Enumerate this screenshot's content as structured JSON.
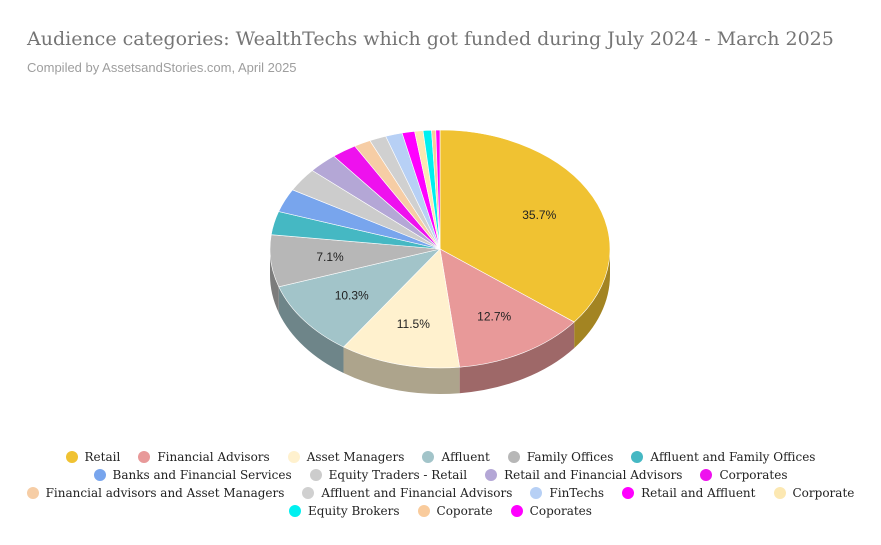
{
  "header": {
    "title": "Audience categories: WealthTechs which got funded during July 2024 - March 2025",
    "subtitle": "Compiled by AssetsandStories.com, April 2025"
  },
  "chart_data": {
    "type": "pie",
    "style": "3d",
    "title": "Audience categories: WealthTechs which got funded during July 2024 - March 2025",
    "subtitle": "Compiled by AssetsandStories.com, April 2025",
    "legend_position": "bottom",
    "slices": [
      {
        "label": "Retail",
        "value": 35.7,
        "data_label": "35.7%",
        "color": "#f0c232"
      },
      {
        "label": "Financial Advisors",
        "value": 12.7,
        "data_label": "12.7%",
        "color": "#e89999"
      },
      {
        "label": "Asset Managers",
        "value": 11.5,
        "data_label": "11.5%",
        "color": "#fff1ce"
      },
      {
        "label": "Affluent",
        "value": 10.3,
        "data_label": "10.3%",
        "color": "#a2c4c9"
      },
      {
        "label": "Family Offices",
        "value": 7.1,
        "data_label": "7.1%",
        "color": "#b7b7b7"
      },
      {
        "label": "Affluent and Family Offices",
        "value": 3.2,
        "data_label": "",
        "color": "#45b8c3"
      },
      {
        "label": "Banks and Financial Services",
        "value": 3.2,
        "data_label": "",
        "color": "#78a5ed"
      },
      {
        "label": "Equity Traders - Retail",
        "value": 3.2,
        "data_label": "",
        "color": "#cccccc"
      },
      {
        "label": "Retail and Financial Advisors",
        "value": 2.8,
        "data_label": "",
        "color": "#b4a7d6"
      },
      {
        "label": "Corporates",
        "value": 2.4,
        "data_label": "",
        "color": "#ee11ee"
      },
      {
        "label": "Financial advisors and Asset Managers",
        "value": 1.6,
        "data_label": "",
        "color": "#f6cda5"
      },
      {
        "label": "Affluent and Financial Advisors",
        "value": 1.6,
        "data_label": "",
        "color": "#d0d0d0"
      },
      {
        "label": "FinTechs",
        "value": 1.6,
        "data_label": "",
        "color": "#b7d0f5"
      },
      {
        "label": "Retail and Affluent",
        "value": 1.2,
        "data_label": "",
        "color": "#ff00ff"
      },
      {
        "label": "Corporate",
        "value": 0.8,
        "data_label": "",
        "color": "#fce8b2"
      },
      {
        "label": "Equity Brokers",
        "value": 0.8,
        "data_label": "",
        "color": "#00f0f0"
      },
      {
        "label": "Coporate",
        "value": 0.4,
        "data_label": "",
        "color": "#f9cb9c"
      },
      {
        "label": "Coporates",
        "value": 0.4,
        "data_label": "",
        "color": "#ff00ff"
      }
    ]
  }
}
